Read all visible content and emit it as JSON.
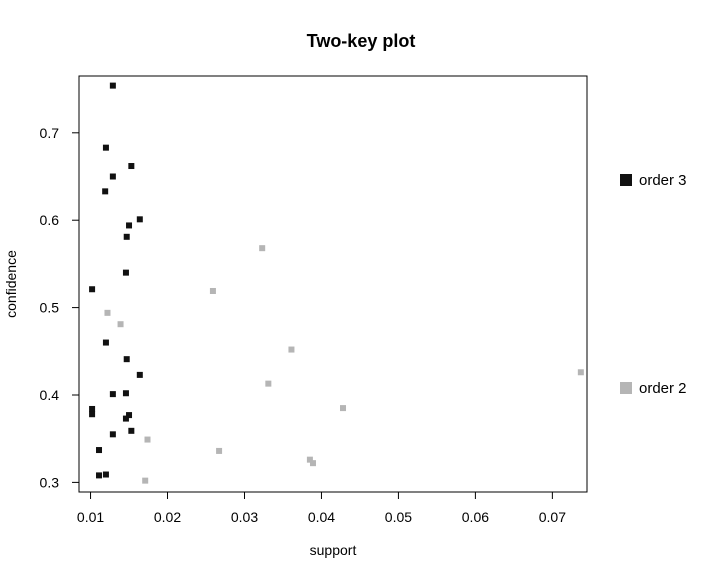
{
  "chart_data": {
    "type": "scatter",
    "title": "Two-key plot",
    "xlabel": "support",
    "ylabel": "confidence",
    "xlim": [
      0.0085,
      0.0745
    ],
    "ylim": [
      0.289,
      0.765
    ],
    "x_ticks": [
      0.01,
      0.02,
      0.03,
      0.04,
      0.05,
      0.06,
      0.07
    ],
    "x_tick_labels": [
      "0.01",
      "0.02",
      "0.03",
      "0.04",
      "0.05",
      "0.06",
      "0.07"
    ],
    "y_ticks": [
      0.3,
      0.4,
      0.5,
      0.6,
      0.7
    ],
    "y_tick_labels": [
      "0.3",
      "0.4",
      "0.5",
      "0.6",
      "0.7"
    ],
    "grid": false,
    "legend_position": "right",
    "series": [
      {
        "name": "order 3",
        "color": "#111111",
        "points": [
          [
            0.0129,
            0.754
          ],
          [
            0.012,
            0.683
          ],
          [
            0.0153,
            0.662
          ],
          [
            0.0129,
            0.65
          ],
          [
            0.0119,
            0.633
          ],
          [
            0.0164,
            0.601
          ],
          [
            0.015,
            0.594
          ],
          [
            0.0147,
            0.581
          ],
          [
            0.0146,
            0.54
          ],
          [
            0.0102,
            0.521
          ],
          [
            0.012,
            0.46
          ],
          [
            0.0147,
            0.441
          ],
          [
            0.0164,
            0.423
          ],
          [
            0.0146,
            0.402
          ],
          [
            0.0129,
            0.401
          ],
          [
            0.0102,
            0.384
          ],
          [
            0.0102,
            0.378
          ],
          [
            0.015,
            0.377
          ],
          [
            0.0146,
            0.373
          ],
          [
            0.0153,
            0.359
          ],
          [
            0.0129,
            0.355
          ],
          [
            0.0111,
            0.337
          ],
          [
            0.012,
            0.309
          ],
          [
            0.0111,
            0.308
          ]
        ]
      },
      {
        "name": "order 2",
        "color": "#b5b5b5",
        "points": [
          [
            0.0323,
            0.568
          ],
          [
            0.0259,
            0.519
          ],
          [
            0.0122,
            0.494
          ],
          [
            0.0139,
            0.481
          ],
          [
            0.0361,
            0.452
          ],
          [
            0.0737,
            0.426
          ],
          [
            0.0331,
            0.413
          ],
          [
            0.0428,
            0.385
          ],
          [
            0.0174,
            0.349
          ],
          [
            0.0267,
            0.336
          ],
          [
            0.0385,
            0.326
          ],
          [
            0.0389,
            0.322
          ],
          [
            0.0171,
            0.302
          ]
        ]
      }
    ]
  }
}
